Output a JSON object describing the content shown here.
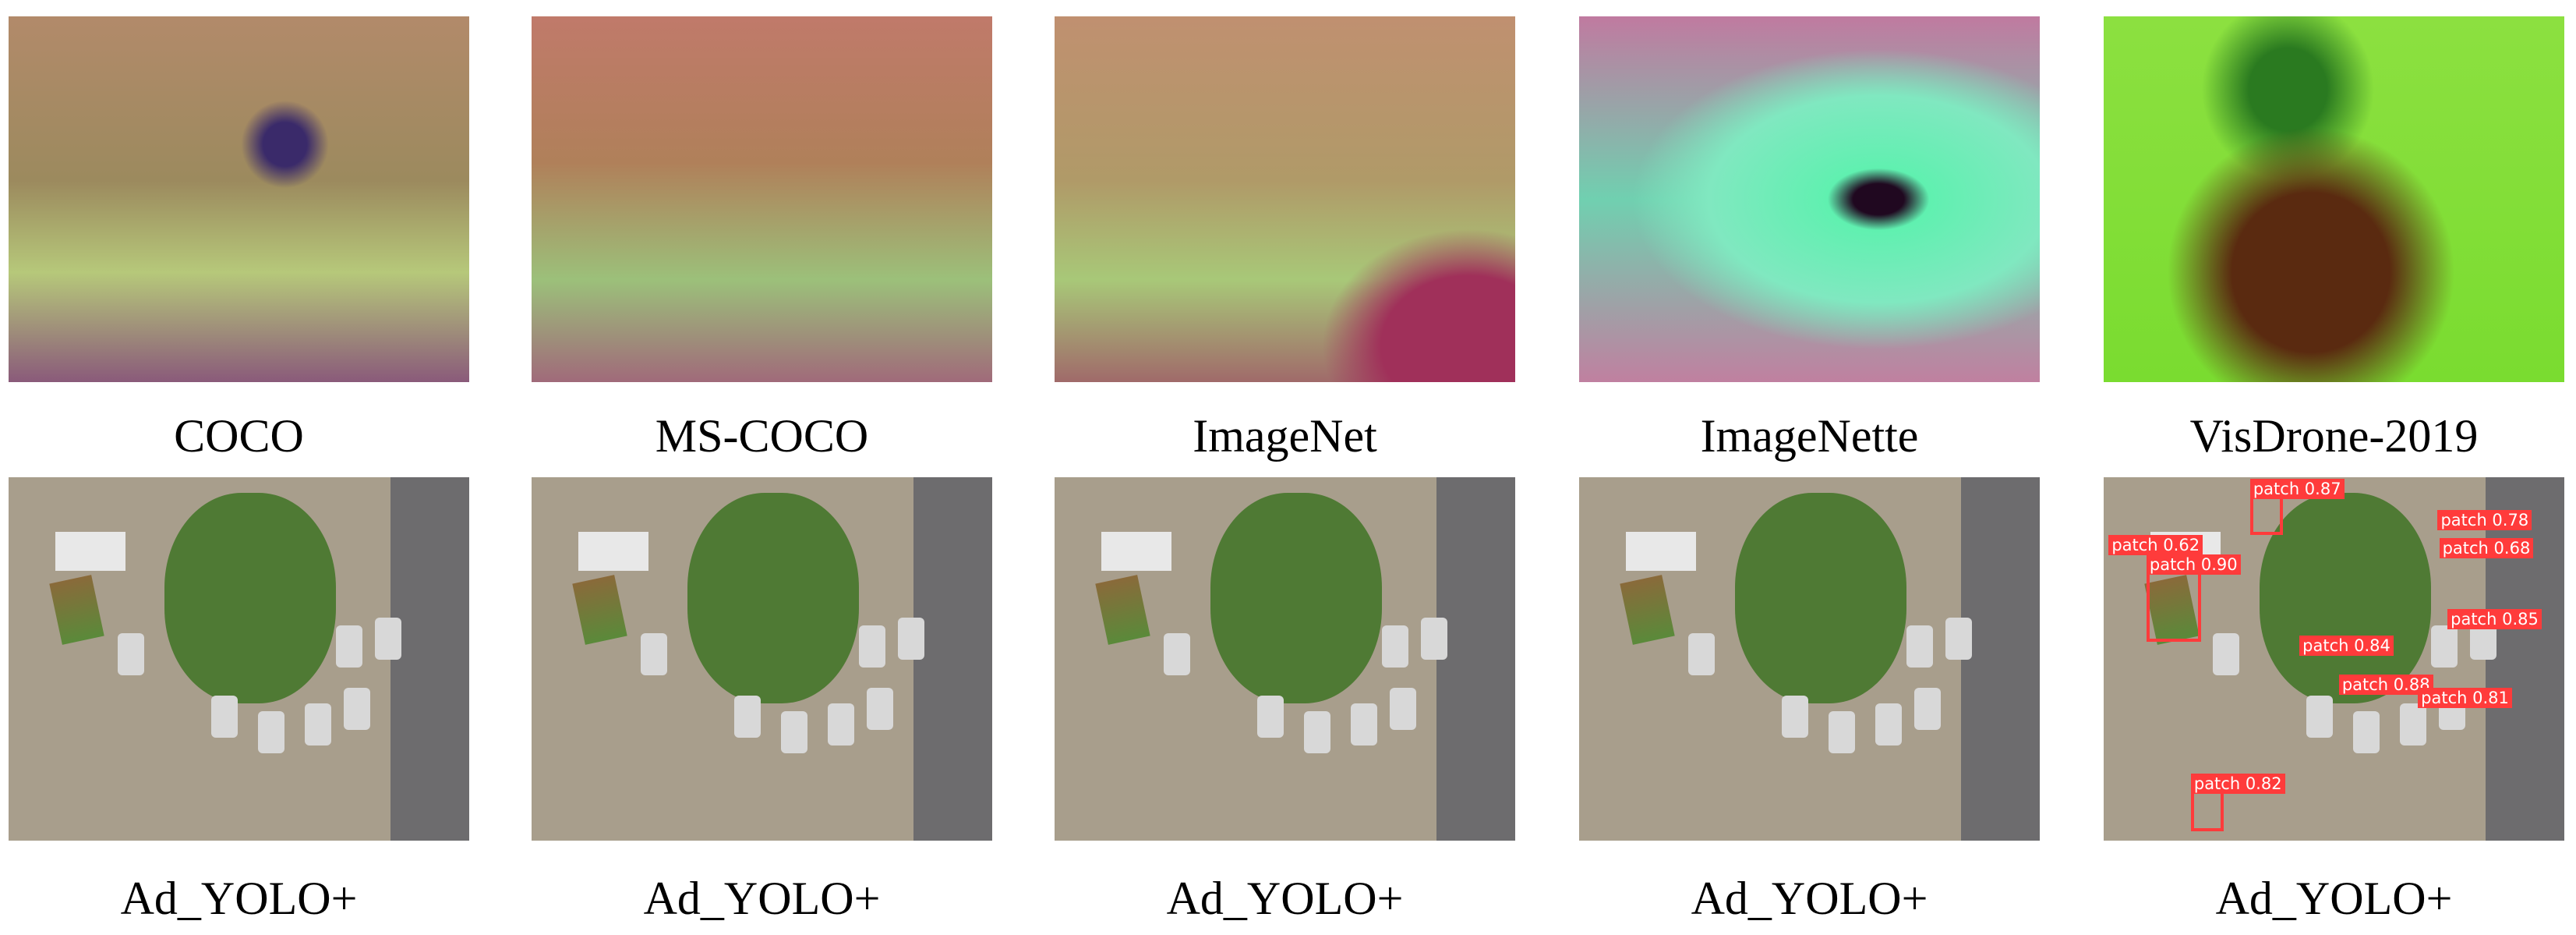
{
  "panels": [
    {
      "top_label": "COCO",
      "bottom_label": "Ad_YOLO+"
    },
    {
      "top_label": "MS-COCO",
      "bottom_label": "Ad_YOLO+"
    },
    {
      "top_label": "ImageNet",
      "bottom_label": "Ad_YOLO+"
    },
    {
      "top_label": "ImageNette",
      "bottom_label": "Ad_YOLO+"
    },
    {
      "top_label": "VisDrone-2019",
      "bottom_label": "Ad_YOLO+"
    }
  ],
  "detections": [
    "patch 0.87",
    "patch 0.78",
    "patch 0.62",
    "patch 0.68",
    "patch 0.90",
    "patch 0.85",
    "patch 0.84",
    "patch 0.88",
    "patch 0.81",
    "patch 0.82"
  ]
}
